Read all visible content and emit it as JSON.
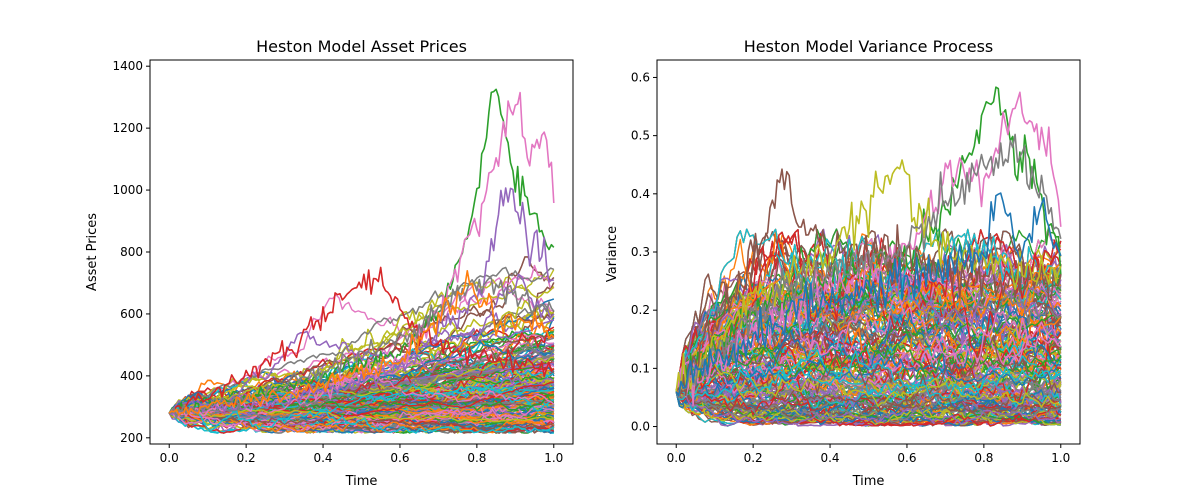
{
  "chart_data": [
    {
      "type": "line",
      "title": "Heston Model Asset Prices",
      "xlabel": "Time",
      "ylabel": "Asset Prices",
      "xlim": [
        -0.05,
        1.05
      ],
      "ylim": [
        180,
        1420
      ],
      "x_ticks": [
        0.0,
        0.2,
        0.4,
        0.6,
        0.8,
        1.0
      ],
      "x_tick_labels": [
        "0.0",
        "0.2",
        "0.4",
        "0.6",
        "0.8",
        "1.0"
      ],
      "y_ticks": [
        200,
        400,
        600,
        800,
        1000,
        1200,
        1400
      ],
      "y_tick_labels": [
        "200",
        "400",
        "600",
        "800",
        "1000",
        "1200",
        "1400"
      ],
      "grid": false,
      "n_paths_approx": 1000,
      "start_value": 280,
      "highlighted_series": [
        {
          "color": "#2ca02c",
          "x": [
            0.0,
            0.2,
            0.4,
            0.6,
            0.7,
            0.78,
            0.83,
            0.85,
            0.88,
            0.92,
            0.96,
            1.0
          ],
          "values": [
            280,
            330,
            400,
            470,
            600,
            860,
            1240,
            1360,
            1100,
            1000,
            880,
            800
          ]
        },
        {
          "color": "#e377c2",
          "x": [
            0.0,
            0.2,
            0.4,
            0.6,
            0.72,
            0.8,
            0.88,
            0.9,
            0.94,
            0.97,
            1.0
          ],
          "values": [
            280,
            300,
            350,
            450,
            650,
            900,
            1250,
            1270,
            1100,
            1200,
            1010
          ]
        },
        {
          "color": "#9467bd",
          "x": [
            0.0,
            0.3,
            0.6,
            0.8,
            0.88,
            0.93,
            1.0
          ],
          "values": [
            280,
            320,
            420,
            650,
            1000,
            850,
            690
          ]
        },
        {
          "color": "#d62728",
          "x": [
            0.0,
            0.1,
            0.3,
            0.45,
            0.55,
            0.62,
            0.7,
            0.8,
            0.9,
            1.0
          ],
          "values": [
            280,
            340,
            470,
            650,
            720,
            560,
            500,
            470,
            440,
            420
          ]
        },
        {
          "color": "#7f7f7f",
          "x": [
            0.0,
            0.2,
            0.4,
            0.6,
            0.78,
            0.84,
            0.9,
            1.0
          ],
          "values": [
            280,
            330,
            420,
            520,
            690,
            700,
            650,
            620
          ]
        },
        {
          "color": "#ff7f0e",
          "x": [
            0.0,
            0.3,
            0.6,
            0.7,
            0.77,
            0.85,
            1.0
          ],
          "values": [
            280,
            340,
            450,
            580,
            700,
            600,
            540
          ]
        }
      ]
    },
    {
      "type": "line",
      "title": "Heston Model Variance Process",
      "xlabel": "Time",
      "ylabel": "Variance",
      "xlim": [
        -0.05,
        1.05
      ],
      "ylim": [
        -0.03,
        0.63
      ],
      "x_ticks": [
        0.0,
        0.2,
        0.4,
        0.6,
        0.8,
        1.0
      ],
      "x_tick_labels": [
        "0.0",
        "0.2",
        "0.4",
        "0.6",
        "0.8",
        "1.0"
      ],
      "y_ticks": [
        0.0,
        0.1,
        0.2,
        0.3,
        0.4,
        0.5,
        0.6
      ],
      "y_tick_labels": [
        "0.0",
        "0.1",
        "0.2",
        "0.3",
        "0.4",
        "0.5",
        "0.6"
      ],
      "grid": false,
      "n_paths_approx": 1000,
      "start_value": 0.06,
      "highlighted_series": [
        {
          "color": "#2ca02c",
          "x": [
            0.0,
            0.2,
            0.4,
            0.6,
            0.7,
            0.78,
            0.82,
            0.84,
            0.88,
            0.92,
            0.96,
            1.0
          ],
          "values": [
            0.06,
            0.2,
            0.25,
            0.3,
            0.36,
            0.5,
            0.56,
            0.6,
            0.45,
            0.48,
            0.35,
            0.3
          ]
        },
        {
          "color": "#e377c2",
          "x": [
            0.0,
            0.3,
            0.6,
            0.72,
            0.8,
            0.86,
            0.9,
            0.94,
            0.97,
            1.0
          ],
          "values": [
            0.06,
            0.2,
            0.3,
            0.45,
            0.42,
            0.52,
            0.55,
            0.5,
            0.48,
            0.36
          ]
        },
        {
          "color": "#8c564b",
          "x": [
            0.0,
            0.15,
            0.28,
            0.32,
            0.4,
            0.6,
            0.8,
            1.0
          ],
          "values": [
            0.06,
            0.22,
            0.42,
            0.36,
            0.3,
            0.28,
            0.26,
            0.24
          ]
        },
        {
          "color": "#bcbd22",
          "x": [
            0.0,
            0.2,
            0.4,
            0.59,
            0.62,
            0.7,
            0.8,
            1.0
          ],
          "values": [
            0.06,
            0.22,
            0.3,
            0.45,
            0.36,
            0.3,
            0.28,
            0.26
          ]
        },
        {
          "color": "#7f7f7f",
          "x": [
            0.0,
            0.3,
            0.6,
            0.72,
            0.8,
            0.88,
            0.94,
            1.0
          ],
          "values": [
            0.06,
            0.25,
            0.3,
            0.4,
            0.44,
            0.48,
            0.42,
            0.3
          ]
        },
        {
          "color": "#1f77b4",
          "x": [
            0.0,
            0.3,
            0.6,
            0.8,
            0.84,
            0.9,
            0.95,
            1.0
          ],
          "values": [
            0.06,
            0.2,
            0.25,
            0.3,
            0.4,
            0.3,
            0.38,
            0.3
          ]
        }
      ]
    }
  ],
  "palette": [
    "#1f77b4",
    "#ff7f0e",
    "#2ca02c",
    "#d62728",
    "#9467bd",
    "#8c564b",
    "#e377c2",
    "#7f7f7f",
    "#bcbd22",
    "#17becf"
  ]
}
